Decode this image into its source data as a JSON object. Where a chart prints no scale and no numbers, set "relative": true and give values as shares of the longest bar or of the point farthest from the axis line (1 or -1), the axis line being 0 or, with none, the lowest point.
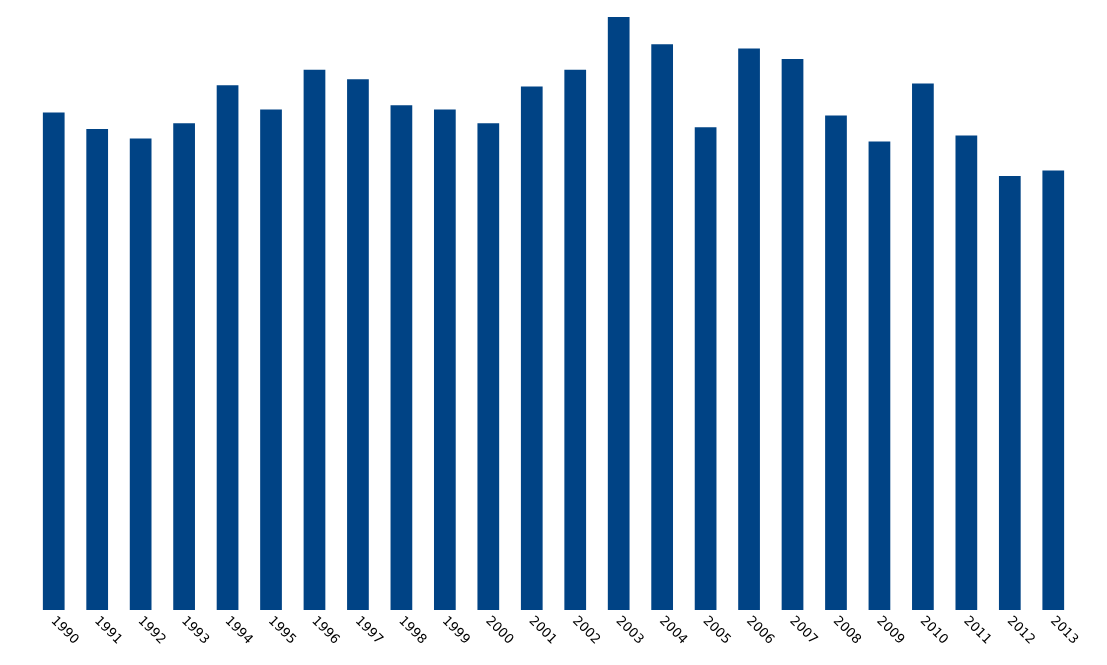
{
  "chart_data": {
    "type": "bar",
    "relative": true,
    "color": "#004385",
    "categories": [
      "1990",
      "1991",
      "1992",
      "1993",
      "1994",
      "1995",
      "1996",
      "1997",
      "1998",
      "1999",
      "2000",
      "2001",
      "2002",
      "2003",
      "2004",
      "2005",
      "2006",
      "2007",
      "2008",
      "2009",
      "2010",
      "2011",
      "2012",
      "2013"
    ],
    "values": [
      0.839,
      0.811,
      0.795,
      0.821,
      0.885,
      0.844,
      0.911,
      0.895,
      0.851,
      0.844,
      0.821,
      0.883,
      0.911,
      1,
      0.954,
      0.814,
      0.947,
      0.929,
      0.834,
      0.79,
      0.888,
      0.8,
      0.732,
      0.741
    ]
  }
}
